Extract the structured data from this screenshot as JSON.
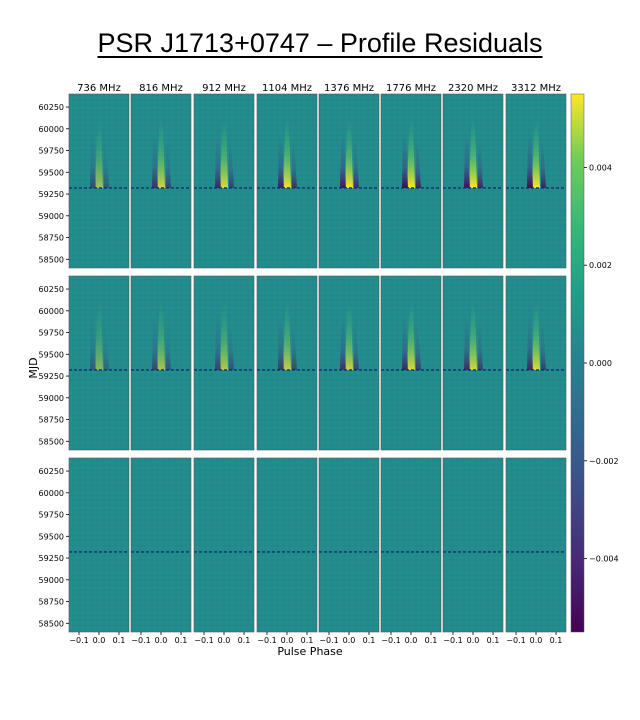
{
  "title": "PSR J1713+0747 – Profile Residuals",
  "chart_data": {
    "type": "heatmap",
    "title": "PSR J1713+0747 – Profile Residuals",
    "xlabel": "Pulse Phase",
    "ylabel": "MJD",
    "frequencies": [
      "736 MHz",
      "816 MHz",
      "912 MHz",
      "1104 MHz",
      "1376 MHz",
      "1776 MHz",
      "2320 MHz",
      "3312 MHz"
    ],
    "rows": 3,
    "x_ticks": [
      -0.1,
      0.0,
      0.1
    ],
    "x_tick_labels": [
      "−0.1",
      "0.0",
      "0.1"
    ],
    "x_range": [
      -0.15,
      0.15
    ],
    "y_ticks": [
      60250,
      60000,
      59750,
      59500,
      59250,
      59000,
      58750,
      58500
    ],
    "y_range": [
      58400,
      60400
    ],
    "event_mjd": 59320,
    "colorbar": {
      "range": [
        -0.0055,
        0.0055
      ],
      "ticks": [
        0.004,
        0.002,
        0.0,
        -0.002,
        -0.004
      ],
      "tick_labels": [
        "0.004",
        "0.002",
        "0.000",
        "−0.002",
        "−0.004"
      ],
      "colormap": "viridis"
    },
    "grid": false,
    "legend": "none"
  }
}
